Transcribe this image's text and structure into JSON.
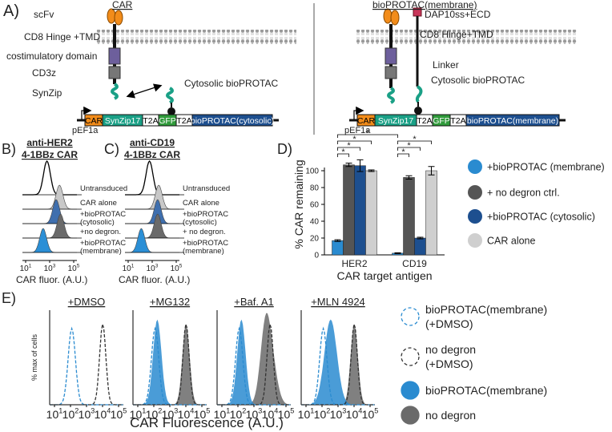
{
  "panel_a": {
    "label": "A)",
    "car": {
      "title": "CAR",
      "scfv": "scFv",
      "hinge": "CD8 Hinge +TMD",
      "costim": "costimulatory domain",
      "cd3z": "CD3z",
      "synzip": "SynZip",
      "cytosolic": "Cytosolic bioPROTAC"
    },
    "membrane": {
      "title": "bioPROTAC(membrane)",
      "dap10": "DAP10ss+ECD",
      "hinge": "CD8 Hinge+TMD",
      "linker": "Linker",
      "cytosolic": "Cytosolic bioPROTAC"
    },
    "constructs": [
      {
        "promoter": "pEF1a",
        "parts": [
          "CAR",
          "SynZip17",
          "T2A",
          "GFP",
          "T2A",
          "bioPROTAC(cytosolic)"
        ]
      },
      {
        "promoter": "pEF1a",
        "parts": [
          "CAR",
          "SynZip17",
          "T2A",
          "GFP",
          "T2A",
          "bioPROTAC(membrane)"
        ]
      }
    ]
  },
  "panel_b": {
    "label": "B)",
    "title": [
      "anti-HER2",
      "4-1BBz CAR"
    ],
    "rows": [
      [
        "Untransduced"
      ],
      [
        "CAR alone"
      ],
      [
        "+bioPROTAC",
        "(cytosolic)"
      ],
      [
        "+no degron."
      ],
      [
        "+bioPROTAC",
        "(membrane)"
      ]
    ],
    "xticks": [
      {
        "base": "10",
        "exp": "1"
      },
      {
        "base": "10",
        "exp": "3"
      },
      {
        "base": "10",
        "exp": "5"
      }
    ],
    "xlabel": "CAR fluor. (A.U.)"
  },
  "panel_c": {
    "label": "C)",
    "title": [
      "anti-CD19",
      "4-1BBz CAR"
    ],
    "rows": [
      [
        "Untransduced"
      ],
      [
        "CAR alone"
      ],
      [
        "+bioPROTAC",
        "(cytosolic)"
      ],
      [
        "+ no degron."
      ],
      [
        "+bioPROTAC",
        "(membrane)"
      ]
    ],
    "xticks": [
      {
        "base": "10",
        "exp": "1"
      },
      {
        "base": "10",
        "exp": "3"
      },
      {
        "base": "10",
        "exp": "5"
      }
    ],
    "xlabel": "CAR fluor. (A.U.)"
  },
  "chart_data": {
    "type": "bar",
    "label": "D)",
    "ylabel": "% CAR remaining",
    "xlabel": "CAR target antigen",
    "categories": [
      "HER2",
      "CD19"
    ],
    "series": [
      {
        "name": "+bioPROTAC (membrane)",
        "color": "#2a8bd0",
        "values": [
          17,
          2
        ],
        "errors": [
          1,
          0.5
        ]
      },
      {
        "name": "+ no degron ctrl.",
        "color": "#555555",
        "values": [
          107,
          92
        ],
        "errors": [
          2,
          2
        ]
      },
      {
        "name": "+bioPROTAC (cytosolic)",
        "color": "#1d4f8f",
        "values": [
          106,
          20
        ],
        "errors": [
          7,
          1
        ]
      },
      {
        "name": "CAR alone",
        "color": "#cfcfcf",
        "values": [
          100,
          100
        ],
        "errors": [
          1,
          5
        ]
      }
    ],
    "ylim": [
      0,
      120
    ],
    "yticks": [
      0,
      20,
      40,
      60,
      80,
      100
    ],
    "significance": [
      "*",
      "*",
      "*",
      "*",
      "*",
      "*",
      "*"
    ]
  },
  "panel_e": {
    "label": "E)",
    "ylabel": "% max of cells",
    "xlabel": "CAR Fluorescence (A.U.)",
    "titles": [
      "+DMSO",
      "+MG132",
      "+Baf. A1",
      "+MLN 4924"
    ],
    "xticks": [
      {
        "base": "10",
        "exp": "1"
      },
      {
        "base": "10",
        "exp": "2"
      },
      {
        "base": "10",
        "exp": "3"
      },
      {
        "base": "10",
        "exp": "4"
      },
      {
        "base": "10",
        "exp": "5"
      }
    ],
    "legend": [
      [
        "bioPROTAC(membrane)",
        "(+DMSO)"
      ],
      [
        "no degron",
        "(+DMSO)"
      ],
      [
        "bioPROTAC(membrane)"
      ],
      [
        "no degron"
      ]
    ]
  }
}
